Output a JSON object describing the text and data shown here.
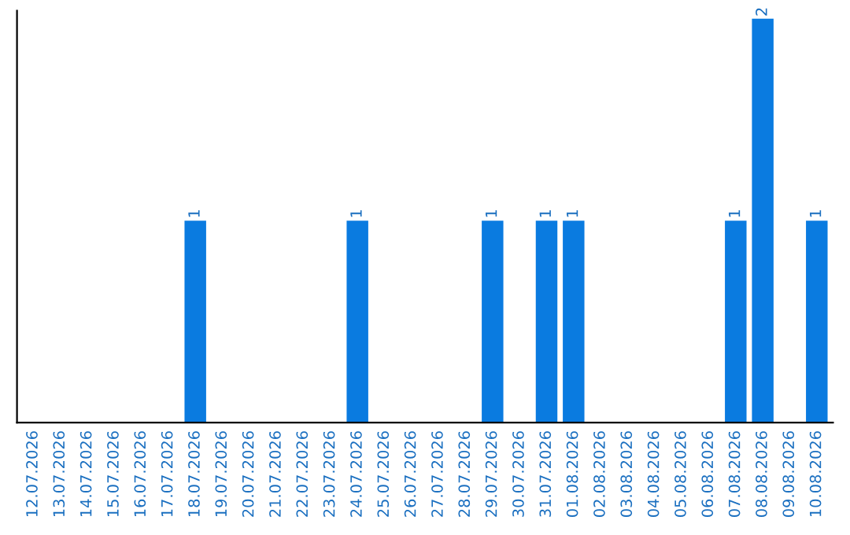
{
  "chart_data": {
    "type": "bar",
    "categories": [
      "12.07.2026",
      "13.07.2026",
      "14.07.2026",
      "15.07.2026",
      "16.07.2026",
      "17.07.2026",
      "18.07.2026",
      "19.07.2026",
      "20.07.2026",
      "21.07.2026",
      "22.07.2026",
      "23.07.2026",
      "24.07.2026",
      "25.07.2026",
      "26.07.2026",
      "27.07.2026",
      "28.07.2026",
      "29.07.2026",
      "30.07.2026",
      "31.07.2026",
      "01.08.2026",
      "02.08.2026",
      "03.08.2026",
      "04.08.2026",
      "05.08.2026",
      "06.08.2026",
      "07.08.2026",
      "08.08.2026",
      "09.08.2026",
      "10.08.2026"
    ],
    "values": [
      0,
      0,
      0,
      0,
      0,
      0,
      1,
      0,
      0,
      0,
      0,
      0,
      1,
      0,
      0,
      0,
      0,
      1,
      0,
      1,
      1,
      0,
      0,
      0,
      0,
      0,
      1,
      2,
      0,
      1
    ],
    "value_labels": [
      null,
      null,
      null,
      null,
      null,
      null,
      "1",
      null,
      null,
      null,
      null,
      null,
      "1",
      null,
      null,
      null,
      null,
      "1",
      null,
      "1",
      "1",
      null,
      null,
      null,
      null,
      null,
      "1",
      "2",
      null,
      "1"
    ],
    "color": "#0a7be0",
    "tick_labels": "x",
    "grid": false,
    "legend": false
  }
}
